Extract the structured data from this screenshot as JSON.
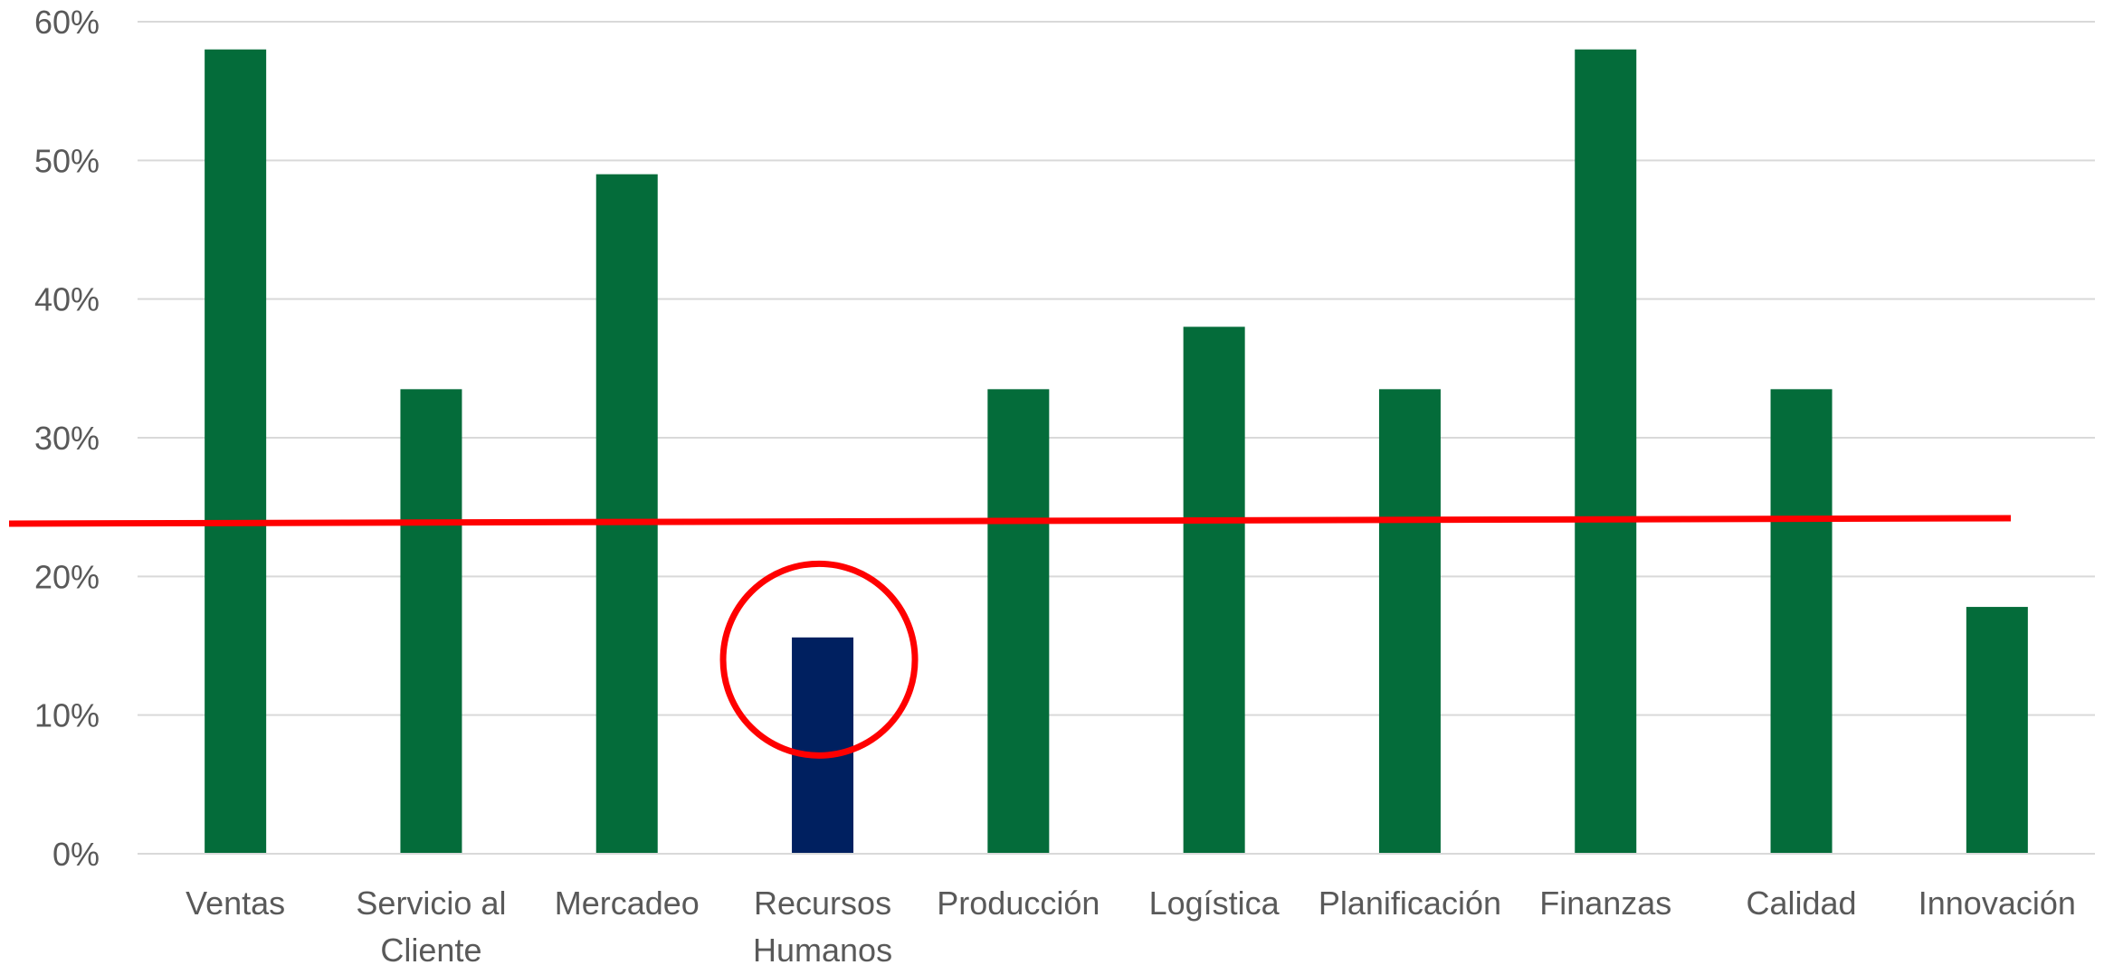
{
  "chart_data": {
    "type": "bar",
    "categories": [
      [
        "Ventas"
      ],
      [
        "Servicio al",
        "Cliente"
      ],
      [
        "Mercadeo"
      ],
      [
        "Recursos",
        "Humanos"
      ],
      [
        "Producción"
      ],
      [
        "Logística"
      ],
      [
        "Planificación"
      ],
      [
        "Finanzas"
      ],
      [
        "Calidad"
      ],
      [
        "Innovación"
      ]
    ],
    "values": [
      58,
      33.5,
      49,
      15.6,
      33.5,
      38,
      33.5,
      58,
      33.5,
      17.8
    ],
    "y_ticks": [
      "0%",
      "10%",
      "20%",
      "30%",
      "40%",
      "50%",
      "60%"
    ],
    "ylim": [
      0,
      60
    ],
    "grid": true,
    "bar_color": "#046C3A",
    "highlight_index": 3,
    "highlight_color": "#002060",
    "reference_line": {
      "value": 24,
      "color": "#FF0000"
    },
    "highlight_circle": {
      "category_index": 3,
      "value": 14,
      "color": "#FF0000"
    }
  }
}
